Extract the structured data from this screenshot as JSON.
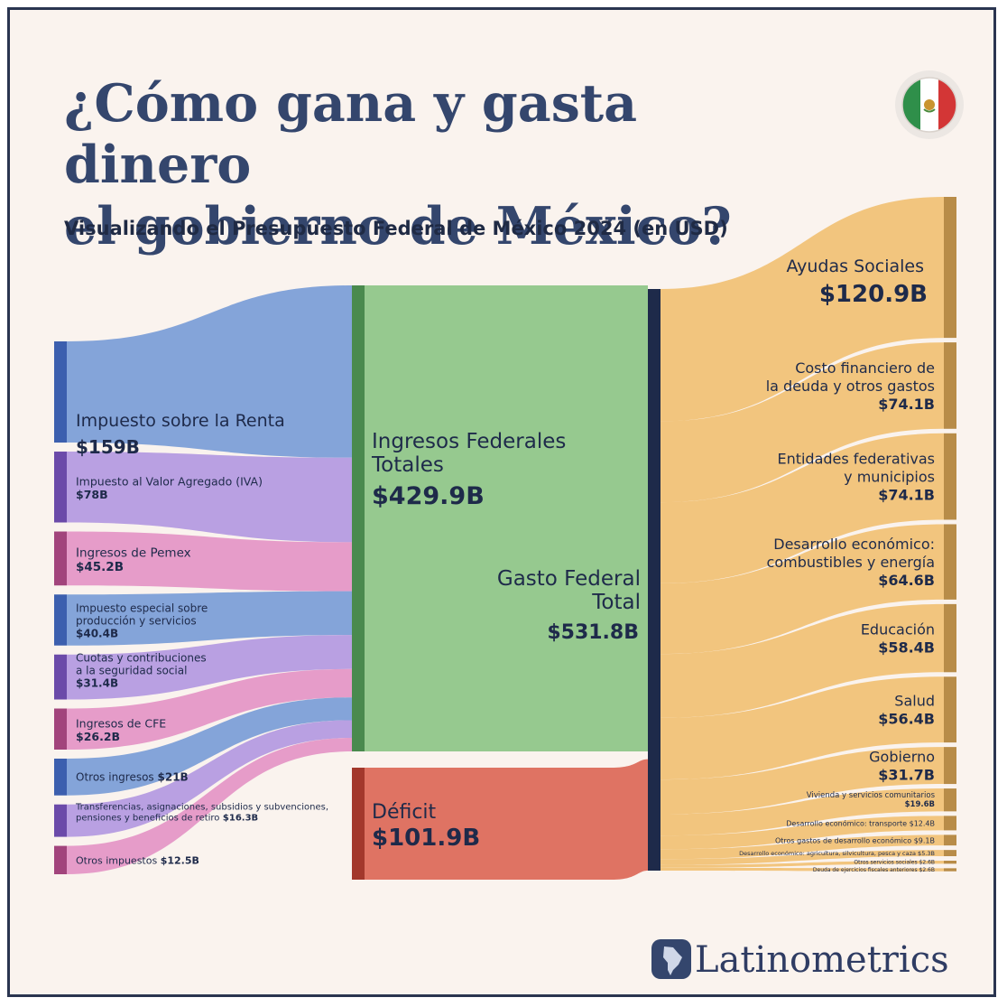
{
  "title_line1": "¿Cómo gana y gasta dinero",
  "title_line2": "el gobierno de México?",
  "subtitle": "Visualizando el Presupuesto Federal de México 2024 (en USD)",
  "brand": "Latinometrics",
  "flag_icon": "mexico-flag-icon",
  "colors": {
    "background": "#faf3ee",
    "title": "#34466d",
    "income_total": "#96c98f",
    "deficit": "#df7363",
    "spending": "#f2c57e",
    "spending_bar": "#b88c48",
    "total_bar": "#1e2a4a"
  },
  "chart_data": {
    "type": "sankey",
    "sources": [
      {
        "label": "Impuesto sobre la Renta",
        "value_label": "$159B",
        "value": 159,
        "color": "#7d9fd7",
        "bar_color": "#3c5fae"
      },
      {
        "label": "Impuesto al Valor Agregado (IVA)",
        "value_label": "$78B",
        "value": 78,
        "color": "#b59be0",
        "bar_color": "#6b4aa9"
      },
      {
        "label": "Ingresos de Pemex",
        "value_label": "$45.2B",
        "value": 45.2,
        "color": "#e597c6",
        "bar_color": "#a2447c"
      },
      {
        "label": "Impuesto especial sobre producción y servicios",
        "value_label": "$40.4B",
        "value": 40.4,
        "color": "#7d9fd7",
        "bar_color": "#3c5fae"
      },
      {
        "label": "Cuotas y contribuciones a la seguridad social",
        "value_label": "$31.4B",
        "value": 31.4,
        "color": "#b59be0",
        "bar_color": "#6b4aa9"
      },
      {
        "label": "Ingresos de CFE",
        "value_label": "$26.2B",
        "value": 26.2,
        "color": "#e597c6",
        "bar_color": "#a2447c"
      },
      {
        "label": "Otros ingresos",
        "value_label": "$21B",
        "value": 21,
        "color": "#7d9fd7",
        "bar_color": "#3c5fae"
      },
      {
        "label": "Transferencias, asignaciones, subsidios y subvenciones, pensiones y beneficios de retiro",
        "value_label": "$16.3B",
        "value": 16.3,
        "color": "#b59be0",
        "bar_color": "#6b4aa9"
      },
      {
        "label": "Otros impuestos",
        "value_label": "$12.5B",
        "value": 12.5,
        "color": "#e597c6",
        "bar_color": "#a2447c"
      }
    ],
    "middle": [
      {
        "label": "Ingresos Federales Totales",
        "value_label": "$429.9B",
        "value": 429.9
      },
      {
        "label": "Déficit",
        "value_label": "$101.9B",
        "value": 101.9
      }
    ],
    "total": {
      "label": "Gasto Federal Total",
      "value_label": "$531.8B",
      "value": 531.8
    },
    "targets": [
      {
        "label": "Ayudas Sociales",
        "value_label": "$120.9B",
        "value": 120.9
      },
      {
        "label": "Costo financiero de la deuda y otros gastos",
        "value_label": "$74.1B",
        "value": 74.1
      },
      {
        "label": "Entidades federativas y municipios",
        "value_label": "$74.1B",
        "value": 74.1
      },
      {
        "label": "Desarrollo económico: combustibles y energía",
        "value_label": "$64.6B",
        "value": 64.6
      },
      {
        "label": "Educación",
        "value_label": "$58.4B",
        "value": 58.4
      },
      {
        "label": "Salud",
        "value_label": "$56.4B",
        "value": 56.4
      },
      {
        "label": "Gobierno",
        "value_label": "$31.7B",
        "value": 31.7
      },
      {
        "label": "Vivienda y servicios comunitarios",
        "value_label": "$19.6B",
        "value": 19.6
      },
      {
        "label": "Desarrollo económico: transporte",
        "value_label": "$12.4B",
        "value": 12.4
      },
      {
        "label": "Otros gastos de desarrollo económico",
        "value_label": "$9.1B",
        "value": 9.1
      },
      {
        "label": "Desarrollo económico: agricultura, silvicultura, pesca y caza",
        "value_label": "$5.3B",
        "value": 5.3
      },
      {
        "label": "Otros servicios sociales",
        "value_label": "$2.6B",
        "value": 2.6
      },
      {
        "label": "Deuda de ejercicios fiscales anteriores",
        "value_label": "$2.6B",
        "value": 2.6
      }
    ]
  }
}
